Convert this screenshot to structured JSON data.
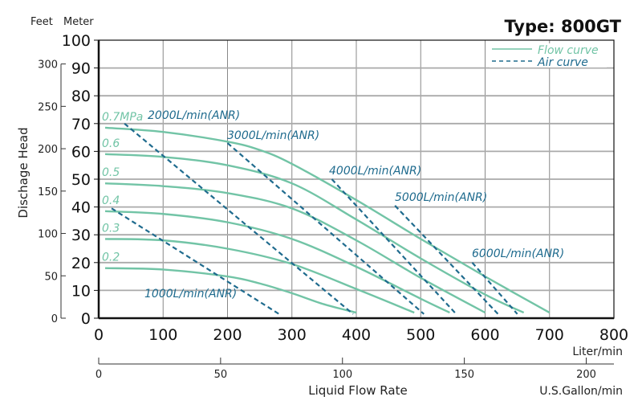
{
  "chart_data": {
    "type": "line",
    "title": "Type: 800GT",
    "ylabel": "Dischage Head",
    "y_units": {
      "left_outer": "Feet",
      "left_inner": "Meter"
    },
    "xlabel": "Liquid Flow Rate",
    "x_units": {
      "primary": "Liter/min",
      "secondary": "U.S.Gallon/min"
    },
    "xlim": [
      0,
      800
    ],
    "ylim": [
      0,
      100
    ],
    "x_ticks": [
      "0",
      "100",
      "200",
      "300",
      "400",
      "500",
      "600",
      "700",
      "800"
    ],
    "y_ticks": [
      "0",
      "10",
      "20",
      "30",
      "40",
      "50",
      "60",
      "70",
      "80",
      "90",
      "100"
    ],
    "feet_ticks": [
      "0",
      "50",
      "100",
      "150",
      "200",
      "250",
      "300"
    ],
    "gallon_ticks": [
      "0",
      "50",
      "100",
      "150",
      "200"
    ],
    "grid": true,
    "legend": {
      "placement": "top-right",
      "entries": [
        "Flow curve",
        "Air curve"
      ]
    },
    "colors": {
      "flow": "#72c4a6",
      "air": "#1f6b8e",
      "flow_label": "#72c4a6",
      "air_label": "#1f6b8e"
    },
    "flow_curves": [
      {
        "label": "0.7MPa",
        "points": [
          [
            10,
            68.5
          ],
          [
            100,
            67
          ],
          [
            200,
            63.5
          ],
          [
            250,
            60.5
          ],
          [
            300,
            55.5
          ],
          [
            400,
            42.5
          ],
          [
            500,
            28.5
          ],
          [
            600,
            15
          ],
          [
            700,
            2
          ]
        ]
      },
      {
        "label": "0.6",
        "points": [
          [
            10,
            59
          ],
          [
            100,
            58
          ],
          [
            200,
            55
          ],
          [
            300,
            48.5
          ],
          [
            400,
            35.5
          ],
          [
            500,
            21.5
          ],
          [
            600,
            8.5
          ],
          [
            660,
            2
          ]
        ]
      },
      {
        "label": "0.5",
        "points": [
          [
            10,
            48.5
          ],
          [
            100,
            47.5
          ],
          [
            200,
            45
          ],
          [
            300,
            39.5
          ],
          [
            400,
            28
          ],
          [
            500,
            14.5
          ],
          [
            600,
            2
          ]
        ]
      },
      {
        "label": "0.4",
        "points": [
          [
            10,
            38.5
          ],
          [
            100,
            37.5
          ],
          [
            200,
            34.5
          ],
          [
            300,
            28.5
          ],
          [
            400,
            18.5
          ],
          [
            500,
            7
          ],
          [
            545,
            2
          ]
        ]
      },
      {
        "label": "0.3",
        "points": [
          [
            10,
            28.5
          ],
          [
            100,
            28
          ],
          [
            200,
            25
          ],
          [
            300,
            19.5
          ],
          [
            400,
            10.5
          ],
          [
            490,
            2
          ]
        ]
      },
      {
        "label": "0.2",
        "points": [
          [
            10,
            18
          ],
          [
            100,
            17.5
          ],
          [
            200,
            15
          ],
          [
            250,
            12.5
          ],
          [
            300,
            9
          ],
          [
            350,
            5
          ],
          [
            400,
            2
          ]
        ]
      }
    ],
    "air_curves": [
      {
        "label": "1000L/min(ANR)",
        "points": [
          [
            20,
            39.5
          ],
          [
            280,
            1.5
          ]
        ]
      },
      {
        "label": "2000L/min(ANR)",
        "points": [
          [
            40,
            70
          ],
          [
            395,
            1.5
          ]
        ]
      },
      {
        "label": "3000L/min(ANR)",
        "points": [
          [
            200,
            63
          ],
          [
            505,
            1.5
          ]
        ]
      },
      {
        "label": "4000L/min(ANR)",
        "points": [
          [
            362,
            50
          ],
          [
            555,
            1.5
          ]
        ]
      },
      {
        "label": "5000L/min(ANR)",
        "points": [
          [
            460,
            40.5
          ],
          [
            620,
            1.5
          ]
        ]
      },
      {
        "label": "6000L/min(ANR)",
        "points": [
          [
            580,
            20
          ],
          [
            650,
            1.5
          ]
        ]
      }
    ]
  }
}
